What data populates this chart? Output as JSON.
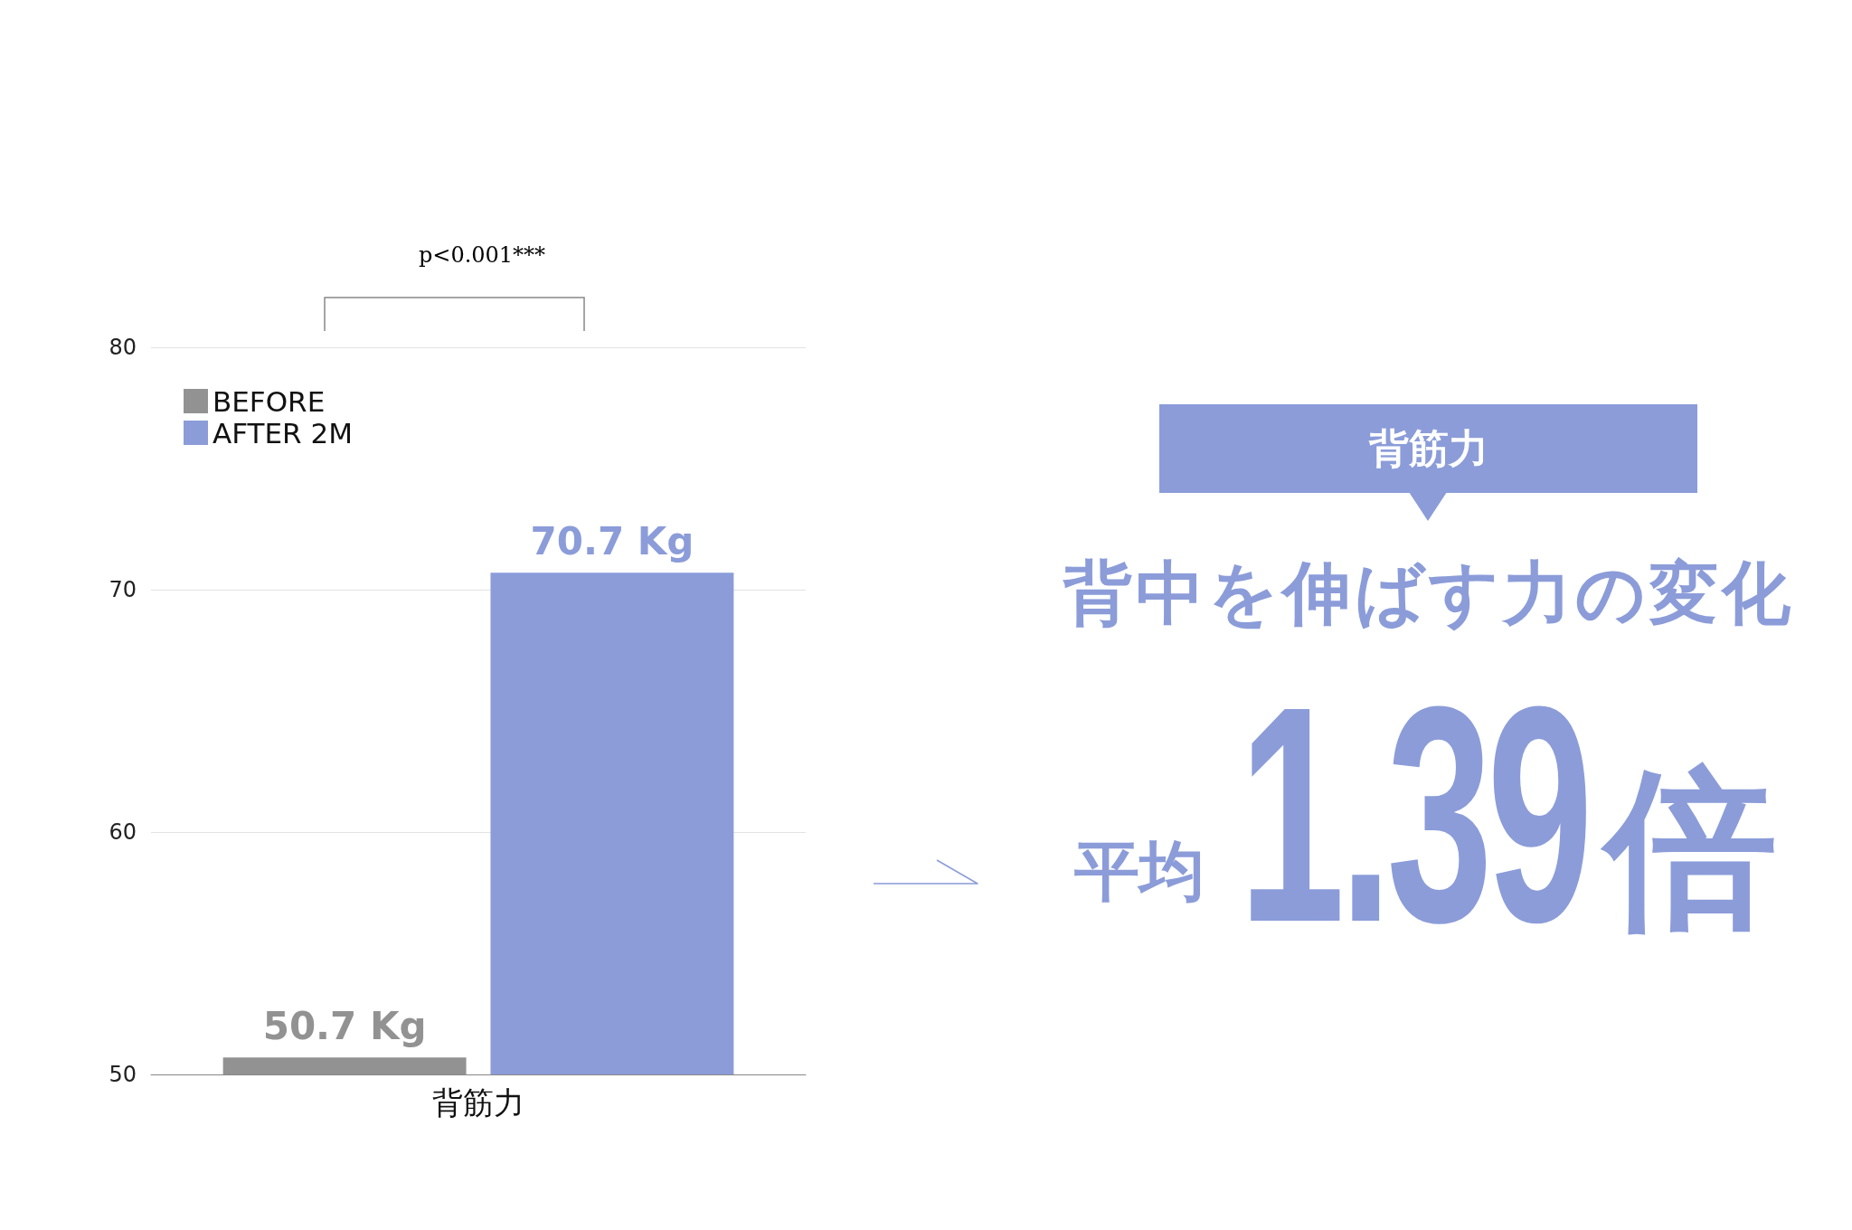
{
  "chart_data": {
    "type": "bar",
    "categories": [
      "背筋力"
    ],
    "series": [
      {
        "name": "BEFORE",
        "color": "#929292",
        "values": [
          50.7
        ],
        "value_labels": [
          "50.7 Kg"
        ]
      },
      {
        "name": "AFTER 2M",
        "color": "#8b9cd9",
        "values": [
          70.7
        ],
        "value_labels": [
          "70.7 Kg"
        ]
      }
    ],
    "ylim": [
      50,
      80
    ],
    "yticks": [
      50,
      60,
      70,
      80
    ],
    "grid": "y",
    "legend": "top left",
    "annotations": [
      "p<0.001***",
      "背筋力",
      "背中を伸ばす力の変化",
      "平均",
      "1.39",
      "倍"
    ]
  }
}
